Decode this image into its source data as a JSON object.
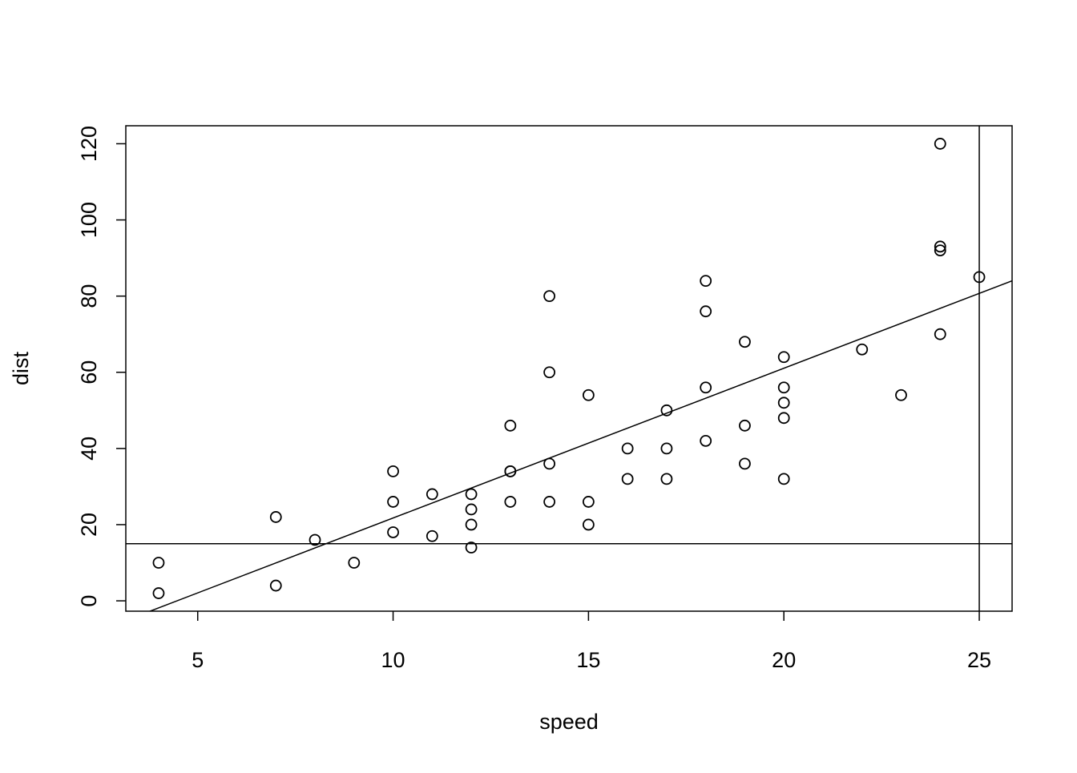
{
  "chart_data": {
    "type": "scatter",
    "xlabel": "speed",
    "ylabel": "dist",
    "x": [
      4,
      4,
      7,
      7,
      8,
      9,
      10,
      10,
      10,
      11,
      11,
      12,
      12,
      12,
      12,
      13,
      13,
      13,
      13,
      14,
      14,
      14,
      14,
      15,
      15,
      15,
      16,
      16,
      17,
      17,
      17,
      18,
      18,
      18,
      18,
      19,
      19,
      19,
      20,
      20,
      20,
      20,
      20,
      22,
      23,
      24,
      24,
      24,
      24,
      25
    ],
    "values": [
      2,
      10,
      4,
      22,
      16,
      10,
      18,
      26,
      34,
      17,
      28,
      14,
      20,
      24,
      28,
      26,
      34,
      34,
      46,
      26,
      36,
      60,
      80,
      20,
      26,
      54,
      32,
      40,
      32,
      40,
      50,
      42,
      56,
      76,
      84,
      36,
      46,
      68,
      32,
      48,
      52,
      56,
      64,
      66,
      54,
      70,
      92,
      93,
      120,
      85
    ],
    "color": "#000000",
    "xlim": [
      3.16,
      25.84
    ],
    "ylim": [
      -2.72,
      124.72
    ],
    "xticks": [
      5,
      10,
      15,
      20,
      25
    ],
    "yticks": [
      0,
      20,
      40,
      60,
      80,
      100,
      120
    ],
    "regression": {
      "intercept": -17.579,
      "slope": 3.932
    },
    "hline": 15,
    "vline": 25
  }
}
